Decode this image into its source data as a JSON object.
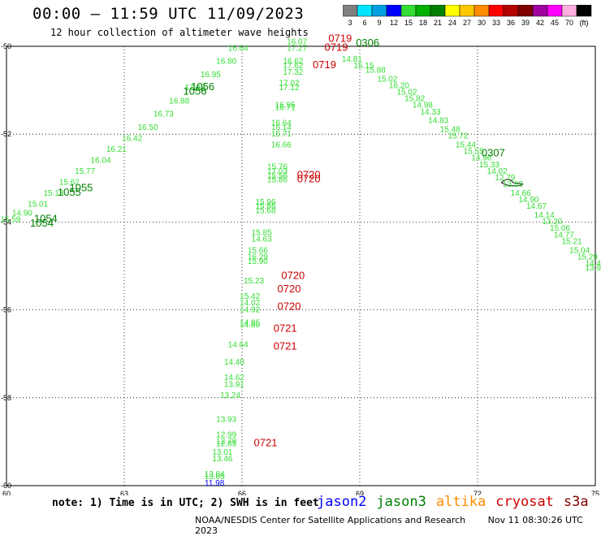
{
  "header": {
    "title": "00:00 – 11:59 UTC 11/09/2023",
    "subtitle": "12 hour collection of altimeter wave heights"
  },
  "colorbar": {
    "labels": [
      "3",
      "6",
      "9",
      "12",
      "15",
      "18",
      "21",
      "24",
      "27",
      "30",
      "33",
      "36",
      "39",
      "42",
      "45",
      "70",
      "(ft)"
    ],
    "colors": [
      "#808080",
      "#00e5ff",
      "#00a0e0",
      "#0000ff",
      "#33dd33",
      "#00b000",
      "#008000",
      "#ffff00",
      "#ffc800",
      "#ff8c00",
      "#ff0000",
      "#b40000",
      "#800000",
      "#a000a0",
      "#ff00ff",
      "#ffb0e0",
      "#000000"
    ]
  },
  "footer": {
    "note": "note: 1) Time is in UTC; 2) SWH is in feet",
    "satellites": [
      {
        "name": "jason2",
        "color": "#0000ff"
      },
      {
        "name": "jason3",
        "color": "#008000"
      },
      {
        "name": "altika",
        "color": "#ff8c00"
      },
      {
        "name": "cryosat",
        "color": "#cc0000"
      },
      {
        "name": "s3a",
        "color": "#800000"
      }
    ],
    "credit": "NOAA/NESDIS Center for Satellite Applications and Research",
    "timestamp": "Nov 11 08:30:26 UTC 2023"
  },
  "chart_data": {
    "type": "scatter",
    "xlim": [
      60,
      75
    ],
    "ylim": [
      -60,
      -50
    ],
    "x_ticks": [
      "60",
      "63",
      "66",
      "69",
      "72",
      "75"
    ],
    "y_ticks": [
      "-50",
      "-52",
      "-54",
      "-56",
      "-58",
      "-60"
    ],
    "grid": "dotted",
    "pass_labels": [
      {
        "text": "1056",
        "x": 65.0,
        "y": -51.0,
        "color": "#008000"
      },
      {
        "text": "1056",
        "x": 64.8,
        "y": -51.1,
        "color": "#008000"
      },
      {
        "text": "1055",
        "x": 61.9,
        "y": -53.3,
        "color": "#008000"
      },
      {
        "text": "1055",
        "x": 61.6,
        "y": -53.4,
        "color": "#008000"
      },
      {
        "text": "1054",
        "x": 61.0,
        "y": -54.0,
        "color": "#008000"
      },
      {
        "text": "1054",
        "x": 60.9,
        "y": -54.1,
        "color": "#008000"
      },
      {
        "text": "0306",
        "x": 69.2,
        "y": -50.0,
        "color": "#008000"
      },
      {
        "text": "0307",
        "x": 72.4,
        "y": -52.5,
        "color": "#008000"
      },
      {
        "text": "0719",
        "x": 68.5,
        "y": -49.9,
        "color": "#cc0000"
      },
      {
        "text": "0719",
        "x": 68.4,
        "y": -50.1,
        "color": "#cc0000"
      },
      {
        "text": "0719",
        "x": 68.1,
        "y": -50.5,
        "color": "#cc0000"
      },
      {
        "text": "0720",
        "x": 67.7,
        "y": -53.0,
        "color": "#cc0000"
      },
      {
        "text": "0720",
        "x": 67.7,
        "y": -53.1,
        "color": "#cc0000"
      },
      {
        "text": "0720",
        "x": 67.3,
        "y": -55.3,
        "color": "#cc0000"
      },
      {
        "text": "0720",
        "x": 67.2,
        "y": -55.6,
        "color": "#cc0000"
      },
      {
        "text": "0720",
        "x": 67.2,
        "y": -56.0,
        "color": "#cc0000"
      },
      {
        "text": "0721",
        "x": 67.1,
        "y": -56.5,
        "color": "#cc0000"
      },
      {
        "text": "0721",
        "x": 67.1,
        "y": -56.9,
        "color": "#cc0000"
      },
      {
        "text": "0721",
        "x": 66.6,
        "y": -59.1,
        "color": "#cc0000"
      }
    ],
    "wave_heights": [
      {
        "text": "16.07",
        "x": 67.4,
        "y": -49.95,
        "color": "#33dd33"
      },
      {
        "text": "17.27",
        "x": 67.4,
        "y": -50.1,
        "color": "#33dd33"
      },
      {
        "text": "16.62",
        "x": 67.3,
        "y": -50.4,
        "color": "#33dd33"
      },
      {
        "text": "17.62",
        "x": 67.3,
        "y": -50.5,
        "color": "#33dd33"
      },
      {
        "text": "17.32",
        "x": 67.3,
        "y": -50.65,
        "color": "#33dd33"
      },
      {
        "text": "17.02",
        "x": 67.2,
        "y": -50.9,
        "color": "#33dd33"
      },
      {
        "text": "17.12",
        "x": 67.2,
        "y": -51.0,
        "color": "#33dd33"
      },
      {
        "text": "16.95",
        "x": 67.1,
        "y": -51.4,
        "color": "#33dd33"
      },
      {
        "text": "16.71",
        "x": 67.1,
        "y": -51.45,
        "color": "#33dd33"
      },
      {
        "text": "16.64",
        "x": 67.0,
        "y": -51.8,
        "color": "#33dd33"
      },
      {
        "text": "16.14",
        "x": 67.0,
        "y": -51.9,
        "color": "#33dd33"
      },
      {
        "text": "15.71",
        "x": 67.0,
        "y": -52.05,
        "color": "#33dd33"
      },
      {
        "text": "16.66",
        "x": 67.0,
        "y": -52.3,
        "color": "#33dd33"
      },
      {
        "text": "15.76",
        "x": 66.9,
        "y": -52.8,
        "color": "#33dd33"
      },
      {
        "text": "17.03",
        "x": 66.9,
        "y": -52.9,
        "color": "#33dd33"
      },
      {
        "text": "15.56",
        "x": 66.9,
        "y": -53.0,
        "color": "#33dd33"
      },
      {
        "text": "15.86",
        "x": 66.9,
        "y": -53.1,
        "color": "#33dd33"
      },
      {
        "text": "15.96",
        "x": 66.6,
        "y": -53.6,
        "color": "#33dd33"
      },
      {
        "text": "15.86",
        "x": 66.6,
        "y": -53.7,
        "color": "#33dd33"
      },
      {
        "text": "15.68",
        "x": 66.6,
        "y": -53.8,
        "color": "#33dd33"
      },
      {
        "text": "15.85",
        "x": 66.5,
        "y": -54.3,
        "color": "#33dd33"
      },
      {
        "text": "14.63",
        "x": 66.5,
        "y": -54.45,
        "color": "#33dd33"
      },
      {
        "text": "15.66",
        "x": 66.4,
        "y": -54.7,
        "color": "#33dd33"
      },
      {
        "text": "16.29",
        "x": 66.4,
        "y": -54.85,
        "color": "#33dd33"
      },
      {
        "text": "15.90",
        "x": 66.4,
        "y": -54.95,
        "color": "#33dd33"
      },
      {
        "text": "15.23",
        "x": 66.3,
        "y": -55.4,
        "color": "#33dd33"
      },
      {
        "text": "15.42",
        "x": 66.2,
        "y": -55.75,
        "color": "#33dd33"
      },
      {
        "text": "14.02",
        "x": 66.2,
        "y": -55.9,
        "color": "#33dd33"
      },
      {
        "text": "14.92",
        "x": 66.2,
        "y": -56.05,
        "color": "#33dd33"
      },
      {
        "text": "14.85",
        "x": 66.2,
        "y": -56.35,
        "color": "#33dd33"
      },
      {
        "text": "14.80",
        "x": 66.2,
        "y": -56.4,
        "color": "#33dd33"
      },
      {
        "text": "14.64",
        "x": 65.9,
        "y": -56.85,
        "color": "#33dd33"
      },
      {
        "text": "14.40",
        "x": 65.8,
        "y": -57.25,
        "color": "#33dd33"
      },
      {
        "text": "14.62",
        "x": 65.8,
        "y": -57.6,
        "color": "#33dd33"
      },
      {
        "text": "13.91",
        "x": 65.8,
        "y": -57.75,
        "color": "#33dd33"
      },
      {
        "text": "13.24",
        "x": 65.7,
        "y": -58.0,
        "color": "#33dd33"
      },
      {
        "text": "13.93",
        "x": 65.6,
        "y": -58.55,
        "color": "#33dd33"
      },
      {
        "text": "12.99",
        "x": 65.6,
        "y": -58.9,
        "color": "#33dd33"
      },
      {
        "text": "12.79",
        "x": 65.6,
        "y": -59.05,
        "color": "#33dd33"
      },
      {
        "text": "12.85",
        "x": 65.6,
        "y": -59.1,
        "color": "#33dd33"
      },
      {
        "text": "13.01",
        "x": 65.5,
        "y": -59.3,
        "color": "#33dd33"
      },
      {
        "text": "13.46",
        "x": 65.5,
        "y": -59.45,
        "color": "#33dd33"
      },
      {
        "text": "13.04",
        "x": 65.3,
        "y": -59.8,
        "color": "#33dd33"
      },
      {
        "text": "13.65",
        "x": 65.3,
        "y": -59.85,
        "color": "#33dd33"
      },
      {
        "text": "11.98",
        "x": 65.3,
        "y": -60.0,
        "color": "#0000ff"
      },
      {
        "text": "15.15",
        "x": 69.1,
        "y": -50.5,
        "color": "#33dd33"
      },
      {
        "text": "14.81",
        "x": 68.8,
        "y": -50.35,
        "color": "#33dd33"
      },
      {
        "text": "15.88",
        "x": 69.4,
        "y": -50.6,
        "color": "#33dd33"
      },
      {
        "text": "15.02",
        "x": 69.7,
        "y": -50.8,
        "color": "#33dd33"
      },
      {
        "text": "16.20",
        "x": 70.0,
        "y": -50.95,
        "color": "#33dd33"
      },
      {
        "text": "15.02",
        "x": 70.2,
        "y": -51.1,
        "color": "#33dd33"
      },
      {
        "text": "15.82",
        "x": 70.4,
        "y": -51.25,
        "color": "#33dd33"
      },
      {
        "text": "14.98",
        "x": 70.6,
        "y": -51.4,
        "color": "#33dd33"
      },
      {
        "text": "14.33",
        "x": 70.8,
        "y": -51.55,
        "color": "#33dd33"
      },
      {
        "text": "14.83",
        "x": 71.0,
        "y": -51.75,
        "color": "#33dd33"
      },
      {
        "text": "15.48",
        "x": 71.3,
        "y": -51.95,
        "color": "#33dd33"
      },
      {
        "text": "15.72",
        "x": 71.5,
        "y": -52.1,
        "color": "#33dd33"
      },
      {
        "text": "15.44",
        "x": 71.7,
        "y": -52.3,
        "color": "#33dd33"
      },
      {
        "text": "15.55",
        "x": 71.9,
        "y": -52.45,
        "color": "#33dd33"
      },
      {
        "text": "14.96",
        "x": 72.1,
        "y": -52.6,
        "color": "#33dd33"
      },
      {
        "text": "15.33",
        "x": 72.3,
        "y": -52.75,
        "color": "#33dd33"
      },
      {
        "text": "14.02",
        "x": 72.5,
        "y": -52.9,
        "color": "#33dd33"
      },
      {
        "text": "12.79",
        "x": 72.7,
        "y": -53.05,
        "color": "#33dd33"
      },
      {
        "text": "13.83",
        "x": 72.9,
        "y": -53.2,
        "color": "#33dd33"
      },
      {
        "text": "14.66",
        "x": 73.1,
        "y": -53.4,
        "color": "#33dd33"
      },
      {
        "text": "14.90",
        "x": 73.3,
        "y": -53.55,
        "color": "#33dd33"
      },
      {
        "text": "14.67",
        "x": 73.5,
        "y": -53.7,
        "color": "#33dd33"
      },
      {
        "text": "14.14",
        "x": 73.7,
        "y": -53.9,
        "color": "#33dd33"
      },
      {
        "text": "13.20",
        "x": 73.9,
        "y": -54.05,
        "color": "#33dd33"
      },
      {
        "text": "15.06",
        "x": 74.1,
        "y": -54.2,
        "color": "#33dd33"
      },
      {
        "text": "14.77",
        "x": 74.2,
        "y": -54.35,
        "color": "#33dd33"
      },
      {
        "text": "15.21",
        "x": 74.4,
        "y": -54.5,
        "color": "#33dd33"
      },
      {
        "text": "15.04",
        "x": 74.6,
        "y": -54.7,
        "color": "#33dd33"
      },
      {
        "text": "15.29",
        "x": 74.8,
        "y": -54.85,
        "color": "#33dd33"
      },
      {
        "text": "14.48",
        "x": 75.0,
        "y": -55.0,
        "color": "#33dd33"
      },
      {
        "text": "13.99",
        "x": 75.0,
        "y": -55.1,
        "color": "#33dd33"
      },
      {
        "text": "15.59",
        "x": 60.1,
        "y": -54.0,
        "color": "#33dd33"
      },
      {
        "text": "14.90",
        "x": 60.4,
        "y": -53.85,
        "color": "#33dd33"
      },
      {
        "text": "15.01",
        "x": 60.8,
        "y": -53.65,
        "color": "#33dd33"
      },
      {
        "text": "15.13",
        "x": 61.2,
        "y": -53.4,
        "color": "#33dd33"
      },
      {
        "text": "15.62",
        "x": 61.6,
        "y": -53.15,
        "color": "#33dd33"
      },
      {
        "text": "15.77",
        "x": 62.0,
        "y": -52.9,
        "color": "#33dd33"
      },
      {
        "text": "16.04",
        "x": 62.4,
        "y": -52.65,
        "color": "#33dd33"
      },
      {
        "text": "16.21",
        "x": 62.8,
        "y": -52.4,
        "color": "#33dd33"
      },
      {
        "text": "16.42",
        "x": 63.2,
        "y": -52.15,
        "color": "#33dd33"
      },
      {
        "text": "16.50",
        "x": 63.6,
        "y": -51.9,
        "color": "#33dd33"
      },
      {
        "text": "16.73",
        "x": 64.0,
        "y": -51.6,
        "color": "#33dd33"
      },
      {
        "text": "16.88",
        "x": 64.4,
        "y": -51.3,
        "color": "#33dd33"
      },
      {
        "text": "17.02",
        "x": 64.8,
        "y": -51.0,
        "color": "#33dd33"
      },
      {
        "text": "16.95",
        "x": 65.2,
        "y": -50.7,
        "color": "#33dd33"
      },
      {
        "text": "16.80",
        "x": 65.6,
        "y": -50.4,
        "color": "#33dd33"
      },
      {
        "text": "16.64",
        "x": 65.9,
        "y": -50.1,
        "color": "#33dd33"
      }
    ]
  }
}
